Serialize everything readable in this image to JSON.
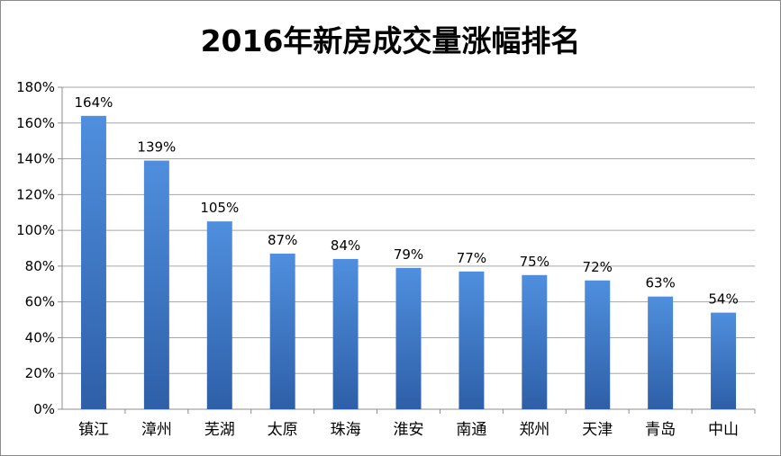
{
  "chart_data": {
    "type": "bar",
    "title": "2016年新房成交量涨幅排名",
    "xlabel": "",
    "ylabel": "",
    "categories": [
      "镇江",
      "漳州",
      "芜湖",
      "太原",
      "珠海",
      "淮安",
      "南通",
      "郑州",
      "天津",
      "青岛",
      "中山"
    ],
    "values": [
      164,
      139,
      105,
      87,
      84,
      79,
      77,
      75,
      72,
      63,
      54
    ],
    "data_labels": [
      "164%",
      "139%",
      "105%",
      "87%",
      "84%",
      "79%",
      "77%",
      "75%",
      "72%",
      "63%",
      "54%"
    ],
    "unit": "%",
    "ylim": [
      0,
      180
    ],
    "yticks": [
      0,
      20,
      40,
      60,
      80,
      100,
      120,
      140,
      160,
      180
    ],
    "ytick_labels": [
      "0%",
      "20%",
      "40%",
      "60%",
      "80%",
      "100%",
      "120%",
      "140%",
      "160%",
      "180%"
    ],
    "grid": true,
    "legend": "none",
    "colors": {
      "bar_top": "#4f8fde",
      "bar_bottom": "#2e5fa8",
      "grid": "#a6a6a6",
      "axis": "#8c8c8c"
    }
  }
}
